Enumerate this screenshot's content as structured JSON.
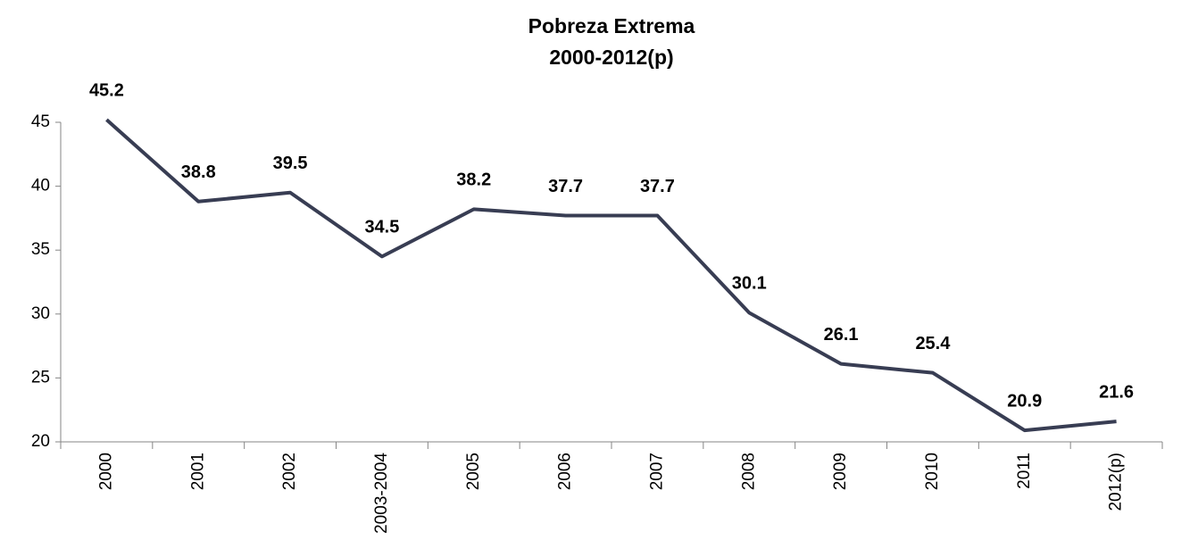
{
  "chart_data": {
    "type": "line",
    "title": "Pobreza Extrema",
    "subtitle": "2000-2012(p)",
    "categories": [
      "2000",
      "2001",
      "2002",
      "2003-2004",
      "2005",
      "2006",
      "2007",
      "2008",
      "2009",
      "2010",
      "2011",
      "2012(p)"
    ],
    "series": [
      {
        "name": "Pobreza Extrema",
        "color": "#383d53",
        "values": [
          45.2,
          38.8,
          39.5,
          34.5,
          38.2,
          37.7,
          37.7,
          30.1,
          26.1,
          25.4,
          20.9,
          21.6
        ]
      }
    ],
    "ylim": [
      20,
      45
    ],
    "yticks": [
      20,
      25,
      30,
      35,
      40,
      45
    ],
    "grid": false
  }
}
